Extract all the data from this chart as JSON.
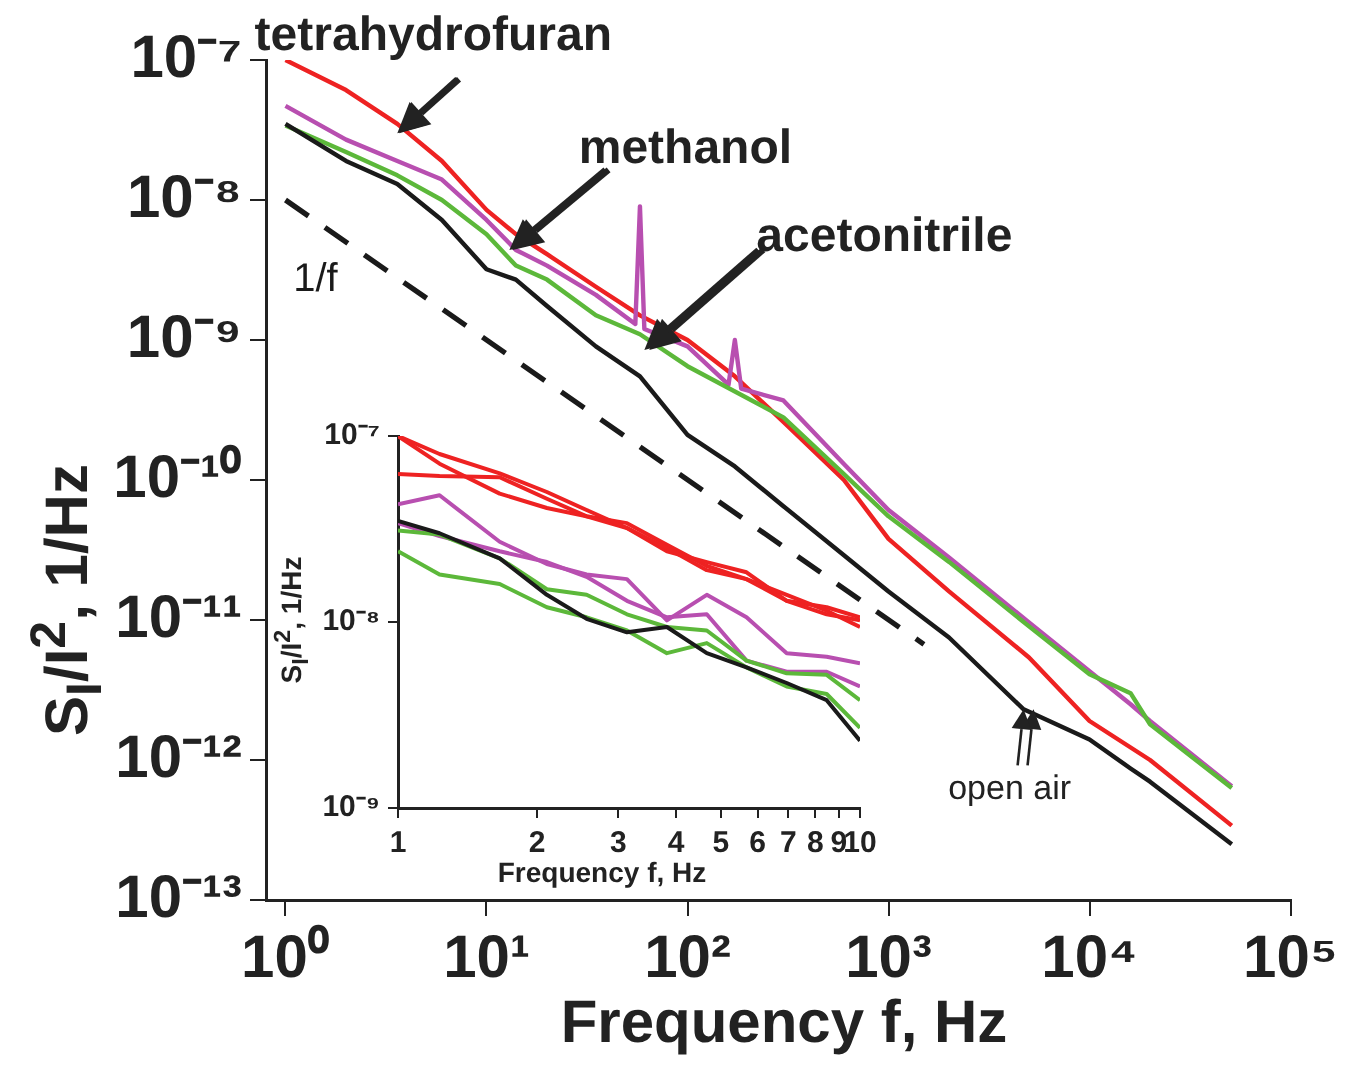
{
  "chart_data": [
    {
      "type": "line",
      "log": "xy",
      "xlabel": "Frequency f, Hz",
      "ylabel": "S$_{I}$/I$^{2}$, 1/Hz",
      "xlim": [
        0.8,
        100000
      ],
      "ylim": [
        1e-13,
        1e-07
      ],
      "xticks": [
        {
          "value": 1,
          "label": "10⁰"
        },
        {
          "value": 10,
          "label": "10¹"
        },
        {
          "value": 100,
          "label": "10²"
        },
        {
          "value": 1000,
          "label": "10³"
        },
        {
          "value": 10000,
          "label": "10⁴"
        },
        {
          "value": 100000,
          "label": "10⁵"
        }
      ],
      "yticks": [
        {
          "value": 1e-13,
          "label": "10⁻¹³"
        },
        {
          "value": 1e-12,
          "label": "10⁻¹²"
        },
        {
          "value": 1e-11,
          "label": "10⁻¹¹"
        },
        {
          "value": 1e-10,
          "label": "10⁻¹⁰"
        },
        {
          "value": 1e-09,
          "label": "10⁻⁹"
        },
        {
          "value": 1e-08,
          "label": "10⁻⁸"
        },
        {
          "value": 1e-07,
          "label": "10⁻⁷"
        }
      ],
      "grid": false,
      "legend": false,
      "annotations": [
        {
          "text": "tetrahydrofuran",
          "x": 3.6,
          "y": 3e-08
        },
        {
          "text": "methanol",
          "x": 13,
          "y": 4.4e-09
        },
        {
          "text": "acetonitrile",
          "x": 61,
          "y": 8.5e-10
        },
        {
          "text": "open air",
          "x": 4700,
          "y": 2.3e-12
        }
      ],
      "series": [
        {
          "color": "#1a1a1a",
          "x": [
            1,
            2,
            3.6,
            6,
            10,
            14,
            20,
            35,
            58,
            100,
            172,
            300,
            600,
            1000,
            2000,
            4700,
            10000,
            16000,
            20000,
            51000
          ],
          "values": [
            3.5e-08,
            1.9e-08,
            1.3e-08,
            7.2e-09,
            3.2e-09,
            2.7e-09,
            1.75e-09,
            9e-10,
            5.5e-10,
            2.1e-10,
            1.25e-10,
            6.5e-11,
            2.9e-11,
            1.6e-11,
            7.5e-12,
            2.3e-12,
            1.4e-12,
            8.7e-13,
            7e-13,
            2.5e-13
          ]
        },
        {
          "color": "#5cb83a",
          "x": [
            1,
            2,
            3.6,
            6,
            10,
            14,
            20,
            35,
            58,
            100,
            300,
            600,
            1000,
            2000,
            5000,
            10000,
            16000,
            20000,
            51000
          ],
          "values": [
            3.4e-08,
            2.2e-08,
            1.5e-08,
            1e-08,
            5.7e-09,
            3.4e-09,
            2.7e-09,
            1.5e-09,
            1.1e-09,
            6.5e-10,
            2.8e-10,
            1.1e-10,
            5.5e-11,
            2.6e-11,
            9e-12,
            4.1e-12,
            3e-12,
            1.8e-12,
            6.3e-13
          ]
        },
        {
          "color": "#b84fb0",
          "x": [
            1,
            2,
            3.6,
            6,
            10,
            14,
            20,
            35,
            55,
            58,
            61,
            100,
            160,
            172,
            185,
            300,
            600,
            1000,
            2000,
            5000,
            10000,
            16000,
            20000,
            51000
          ],
          "values": [
            4.7e-08,
            2.7e-08,
            1.9e-08,
            1.4e-08,
            7.2e-09,
            4.4e-09,
            3.4e-09,
            2.1e-09,
            1.3e-09,
            9e-09,
            1.2e-09,
            9e-10,
            4.8e-10,
            1e-09,
            4.5e-10,
            3.7e-10,
            1.3e-10,
            6.1e-11,
            2.8e-11,
            9.6e-12,
            4.3e-12,
            2.5e-12,
            1.9e-12,
            6.5e-13
          ]
        },
        {
          "color": "#ee2222",
          "x": [
            1,
            2,
            3.6,
            6,
            10,
            14,
            20,
            35,
            58,
            100,
            172,
            300,
            600,
            1000,
            2000,
            5000,
            10000,
            20000,
            51000
          ],
          "values": [
            1e-07,
            6.1e-08,
            3.5e-08,
            1.9e-08,
            8.5e-09,
            5.7e-09,
            4.1e-09,
            2.4e-09,
            1.5e-09,
            1e-09,
            5.5e-10,
            2.6e-10,
            1e-10,
            3.8e-11,
            1.6e-11,
            5.4e-12,
            1.9e-12,
            1e-12,
            3.4e-13
          ]
        },
        {
          "name": "1/f",
          "color": "#1a1a1a",
          "line_style": "dashed",
          "x": [
            1,
            1500
          ],
          "values": [
            1e-08,
            6.7e-12
          ]
        }
      ]
    },
    {
      "type": "line",
      "log": "xy",
      "xlabel": "Frequency f, Hz",
      "ylabel": "S$_{I}$/I$^{2}$, 1/Hz",
      "xlim": [
        1,
        10
      ],
      "ylim": [
        1e-09,
        1e-07
      ],
      "xticks": [
        1,
        2,
        3,
        4,
        5,
        6,
        7,
        8,
        9,
        10
      ],
      "yticks": [
        {
          "value": 1e-09,
          "label": "10⁻⁹"
        },
        {
          "value": 1e-08,
          "label": "10⁻⁸"
        },
        {
          "value": 1e-07,
          "label": "10⁻⁷"
        }
      ],
      "grid": false,
      "legend": false,
      "x": [
        1,
        1.23,
        1.66,
        2.1,
        2.56,
        3.13,
        3.82,
        4.66,
        5.68,
        6.94,
        8.47,
        10
      ],
      "series": [
        {
          "color": "#1a1a1a",
          "values": [
            3.5e-08,
            3e-08,
            2.2e-08,
            1.4e-08,
            1.04e-08,
            8.8e-09,
            9.4e-09,
            6.8e-09,
            5.7e-09,
            4.7e-09,
            3.8e-09,
            2.3e-09
          ]
        },
        {
          "color": "#5cb83a",
          "values": [
            3.1e-08,
            2.95e-08,
            2.2e-08,
            1.5e-08,
            1.4e-08,
            1.1e-08,
            9.4e-09,
            9e-09,
            6.2e-09,
            5.3e-09,
            5.2e-09,
            3.8e-09
          ]
        },
        {
          "color": "#5cb83a",
          "values": [
            2.4e-08,
            1.8e-08,
            1.6e-08,
            1.2e-08,
            1.06e-08,
            9e-09,
            6.8e-09,
            7.7e-09,
            5.7e-09,
            4.5e-09,
            4.1e-09,
            2.7e-09
          ]
        },
        {
          "color": "#b84fb0",
          "values": [
            4.3e-08,
            4.8e-08,
            2.7e-08,
            2.05e-08,
            1.8e-08,
            1.7e-08,
            1.02e-08,
            1.4e-08,
            1.06e-08,
            6.8e-09,
            6.5e-09,
            6e-09
          ]
        },
        {
          "color": "#b84fb0",
          "values": [
            3.4e-08,
            2.9e-08,
            2.4e-08,
            2.1e-08,
            1.75e-08,
            1.3e-08,
            1.06e-08,
            1.1e-08,
            6.2e-09,
            5.4e-09,
            5.4e-09,
            4.5e-09
          ]
        },
        {
          "color": "#ee2222",
          "values": [
            1e-07,
            8e-08,
            6.3e-08,
            5e-08,
            4e-08,
            3.2e-08,
            2.5e-08,
            1.9e-08,
            1.7e-08,
            1.4e-08,
            1.15e-08,
            9.4e-09
          ]
        },
        {
          "color": "#ee2222",
          "values": [
            6.25e-08,
            6.1e-08,
            6e-08,
            4.6e-08,
            3.7e-08,
            3.2e-08,
            2.4e-08,
            2.1e-08,
            1.85e-08,
            1.3e-08,
            1.2e-08,
            1.06e-08
          ]
        },
        {
          "color": "#ee2222",
          "values": [
            1e-07,
            7.1e-08,
            4.9e-08,
            4.1e-08,
            3.7e-08,
            3.4e-08,
            2.6e-08,
            2e-08,
            1.7e-08,
            1.3e-08,
            1.1e-08,
            1.02e-08
          ]
        }
      ]
    }
  ]
}
